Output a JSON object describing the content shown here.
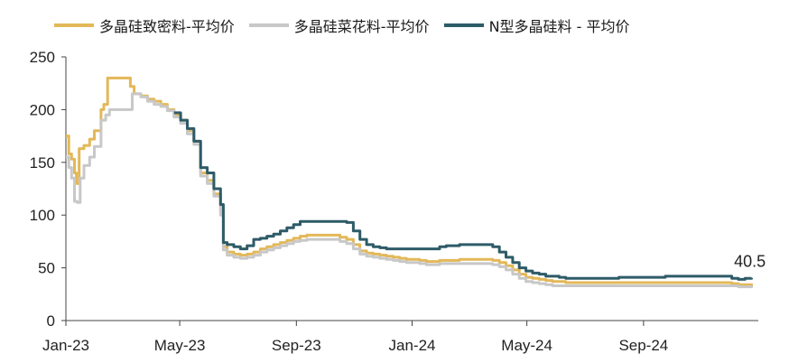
{
  "chart_data": {
    "type": "line",
    "title": "",
    "xlabel": "",
    "ylabel": "",
    "ylim": [
      0,
      250
    ],
    "yticks": [
      0,
      50,
      100,
      150,
      200,
      250
    ],
    "x_tick_labels": [
      "Jan-23",
      "May-23",
      "Sep-23",
      "Jan-24",
      "May-24",
      "Sep-24"
    ],
    "legend_position": "top",
    "grid": false,
    "annotation": "40.5",
    "series": [
      {
        "name": "多晶硅致密料-平均价",
        "color": "#e3b858",
        "points": [
          [
            "2023-01-01",
            175
          ],
          [
            "2023-01-04",
            158
          ],
          [
            "2023-01-07",
            153
          ],
          [
            "2023-01-10",
            140
          ],
          [
            "2023-01-12",
            130
          ],
          [
            "2023-01-15",
            163
          ],
          [
            "2023-01-20",
            166
          ],
          [
            "2023-01-26",
            172
          ],
          [
            "2023-01-31",
            180
          ],
          [
            "2023-02-07",
            200
          ],
          [
            "2023-02-10",
            205
          ],
          [
            "2023-02-14",
            230
          ],
          [
            "2023-03-07",
            230
          ],
          [
            "2023-03-10",
            222
          ],
          [
            "2023-03-14",
            215
          ],
          [
            "2023-03-21",
            213
          ],
          [
            "2023-03-28",
            210
          ],
          [
            "2023-04-04",
            208
          ],
          [
            "2023-04-11",
            205
          ],
          [
            "2023-04-18",
            200
          ],
          [
            "2023-04-25",
            195
          ],
          [
            "2023-05-02",
            190
          ],
          [
            "2023-05-09",
            180
          ],
          [
            "2023-05-16",
            170
          ],
          [
            "2023-05-23",
            140
          ],
          [
            "2023-05-30",
            133
          ],
          [
            "2023-06-06",
            120
          ],
          [
            "2023-06-13",
            105
          ],
          [
            "2023-06-16",
            70
          ],
          [
            "2023-06-20",
            65
          ],
          [
            "2023-06-27",
            63
          ],
          [
            "2023-07-04",
            62
          ],
          [
            "2023-07-11",
            63
          ],
          [
            "2023-07-18",
            65
          ],
          [
            "2023-07-25",
            68
          ],
          [
            "2023-08-01",
            70
          ],
          [
            "2023-08-08",
            72
          ],
          [
            "2023-08-15",
            74
          ],
          [
            "2023-08-22",
            76
          ],
          [
            "2023-08-29",
            78
          ],
          [
            "2023-09-05",
            80
          ],
          [
            "2023-09-12",
            81
          ],
          [
            "2023-10-10",
            81
          ],
          [
            "2023-10-17",
            79
          ],
          [
            "2023-10-24",
            77
          ],
          [
            "2023-10-31",
            72
          ],
          [
            "2023-11-07",
            66
          ],
          [
            "2023-11-14",
            64
          ],
          [
            "2023-11-21",
            63
          ],
          [
            "2023-11-28",
            62
          ],
          [
            "2023-12-05",
            61
          ],
          [
            "2023-12-12",
            60
          ],
          [
            "2023-12-19",
            59
          ],
          [
            "2023-12-26",
            58
          ],
          [
            "2024-01-02",
            58
          ],
          [
            "2024-01-09",
            57
          ],
          [
            "2024-01-16",
            56
          ],
          [
            "2024-01-23",
            56
          ],
          [
            "2024-01-30",
            57
          ],
          [
            "2024-02-20",
            58
          ],
          [
            "2024-03-05",
            58
          ],
          [
            "2024-03-19",
            58
          ],
          [
            "2024-03-26",
            57
          ],
          [
            "2024-04-02",
            55
          ],
          [
            "2024-04-09",
            52
          ],
          [
            "2024-04-16",
            48
          ],
          [
            "2024-04-23",
            44
          ],
          [
            "2024-04-30",
            41
          ],
          [
            "2024-05-07",
            40
          ],
          [
            "2024-05-14",
            39
          ],
          [
            "2024-05-21",
            38
          ],
          [
            "2024-05-28",
            37
          ],
          [
            "2024-06-11",
            36
          ],
          [
            "2024-07-02",
            36
          ],
          [
            "2024-08-06",
            36
          ],
          [
            "2024-09-03",
            36
          ],
          [
            "2024-10-01",
            36
          ],
          [
            "2024-11-05",
            36
          ],
          [
            "2024-12-03",
            35
          ],
          [
            "2024-12-10",
            34
          ],
          [
            "2024-12-24",
            35
          ]
        ]
      },
      {
        "name": "多晶硅菜花料-平均价",
        "color": "#c8c8c8",
        "points": [
          [
            "2023-01-01",
            155
          ],
          [
            "2023-01-04",
            145
          ],
          [
            "2023-01-07",
            135
          ],
          [
            "2023-01-10",
            113
          ],
          [
            "2023-01-13",
            112
          ],
          [
            "2023-01-16",
            135
          ],
          [
            "2023-01-20",
            147
          ],
          [
            "2023-01-26",
            155
          ],
          [
            "2023-01-31",
            165
          ],
          [
            "2023-02-07",
            190
          ],
          [
            "2023-02-12",
            195
          ],
          [
            "2023-02-16",
            200
          ],
          [
            "2023-03-10",
            200
          ],
          [
            "2023-03-12",
            215
          ],
          [
            "2023-03-21",
            212
          ],
          [
            "2023-03-28",
            208
          ],
          [
            "2023-04-04",
            205
          ],
          [
            "2023-04-11",
            203
          ],
          [
            "2023-04-18",
            199
          ],
          [
            "2023-04-25",
            193
          ],
          [
            "2023-05-02",
            187
          ],
          [
            "2023-05-09",
            177
          ],
          [
            "2023-05-16",
            167
          ],
          [
            "2023-05-23",
            137
          ],
          [
            "2023-05-30",
            130
          ],
          [
            "2023-06-06",
            118
          ],
          [
            "2023-06-13",
            100
          ],
          [
            "2023-06-16",
            67
          ],
          [
            "2023-06-20",
            62
          ],
          [
            "2023-06-27",
            60
          ],
          [
            "2023-07-04",
            59
          ],
          [
            "2023-07-11",
            60
          ],
          [
            "2023-07-18",
            62
          ],
          [
            "2023-07-25",
            65
          ],
          [
            "2023-08-01",
            67
          ],
          [
            "2023-08-08",
            69
          ],
          [
            "2023-08-15",
            71
          ],
          [
            "2023-08-22",
            73
          ],
          [
            "2023-08-29",
            75
          ],
          [
            "2023-09-05",
            76
          ],
          [
            "2023-09-12",
            77
          ],
          [
            "2023-10-10",
            77
          ],
          [
            "2023-10-17",
            75
          ],
          [
            "2023-10-24",
            73
          ],
          [
            "2023-10-31",
            68
          ],
          [
            "2023-11-07",
            63
          ],
          [
            "2023-11-14",
            61
          ],
          [
            "2023-11-21",
            60
          ],
          [
            "2023-11-28",
            59
          ],
          [
            "2023-12-05",
            58
          ],
          [
            "2023-12-12",
            57
          ],
          [
            "2023-12-19",
            56
          ],
          [
            "2023-12-26",
            55
          ],
          [
            "2024-01-02",
            55
          ],
          [
            "2024-01-09",
            54
          ],
          [
            "2024-01-16",
            53
          ],
          [
            "2024-01-23",
            53
          ],
          [
            "2024-01-30",
            54
          ],
          [
            "2024-02-20",
            54
          ],
          [
            "2024-03-05",
            54
          ],
          [
            "2024-03-19",
            54
          ],
          [
            "2024-03-26",
            53
          ],
          [
            "2024-04-02",
            51
          ],
          [
            "2024-04-09",
            48
          ],
          [
            "2024-04-16",
            44
          ],
          [
            "2024-04-23",
            40
          ],
          [
            "2024-04-30",
            37
          ],
          [
            "2024-05-07",
            36
          ],
          [
            "2024-05-14",
            35
          ],
          [
            "2024-05-21",
            34
          ],
          [
            "2024-05-28",
            33
          ],
          [
            "2024-06-11",
            33
          ],
          [
            "2024-07-02",
            33
          ],
          [
            "2024-08-06",
            33
          ],
          [
            "2024-09-03",
            33
          ],
          [
            "2024-10-01",
            33
          ],
          [
            "2024-11-05",
            33
          ],
          [
            "2024-12-03",
            33
          ],
          [
            "2024-12-10",
            32
          ],
          [
            "2024-12-24",
            33
          ]
        ]
      },
      {
        "name": "N型多晶硅料 - 平均价",
        "color": "#2e5b68",
        "points": [
          [
            "2023-04-25",
            197
          ],
          [
            "2023-05-02",
            190
          ],
          [
            "2023-05-09",
            182
          ],
          [
            "2023-05-16",
            170
          ],
          [
            "2023-05-23",
            145
          ],
          [
            "2023-05-30",
            140
          ],
          [
            "2023-06-06",
            125
          ],
          [
            "2023-06-13",
            110
          ],
          [
            "2023-06-16",
            74
          ],
          [
            "2023-06-20",
            72
          ],
          [
            "2023-06-27",
            70
          ],
          [
            "2023-07-04",
            68
          ],
          [
            "2023-07-11",
            71
          ],
          [
            "2023-07-18",
            77
          ],
          [
            "2023-07-25",
            78
          ],
          [
            "2023-08-01",
            80
          ],
          [
            "2023-08-08",
            82
          ],
          [
            "2023-08-15",
            85
          ],
          [
            "2023-08-22",
            88
          ],
          [
            "2023-08-29",
            91
          ],
          [
            "2023-09-05",
            94
          ],
          [
            "2023-10-17",
            94
          ],
          [
            "2023-10-24",
            93
          ],
          [
            "2023-10-31",
            85
          ],
          [
            "2023-11-07",
            77
          ],
          [
            "2023-11-14",
            72
          ],
          [
            "2023-11-21",
            70
          ],
          [
            "2023-11-28",
            69
          ],
          [
            "2023-12-05",
            68
          ],
          [
            "2024-01-09",
            68
          ],
          [
            "2024-01-16",
            68
          ],
          [
            "2024-01-23",
            68
          ],
          [
            "2024-01-30",
            70
          ],
          [
            "2024-02-06",
            71
          ],
          [
            "2024-02-20",
            72
          ],
          [
            "2024-03-05",
            72
          ],
          [
            "2024-03-19",
            72
          ],
          [
            "2024-03-26",
            70
          ],
          [
            "2024-04-02",
            65
          ],
          [
            "2024-04-09",
            60
          ],
          [
            "2024-04-16",
            55
          ],
          [
            "2024-04-23",
            50
          ],
          [
            "2024-04-30",
            47
          ],
          [
            "2024-05-07",
            45
          ],
          [
            "2024-05-14",
            44
          ],
          [
            "2024-05-21",
            42
          ],
          [
            "2024-06-04",
            41
          ],
          [
            "2024-06-11",
            40
          ],
          [
            "2024-07-02",
            40
          ],
          [
            "2024-07-30",
            40
          ],
          [
            "2024-08-06",
            41
          ],
          [
            "2024-09-03",
            41
          ],
          [
            "2024-09-24",
            42
          ],
          [
            "2024-10-01",
            42
          ],
          [
            "2024-11-05",
            42
          ],
          [
            "2024-11-26",
            42
          ],
          [
            "2024-12-03",
            40
          ],
          [
            "2024-12-10",
            39
          ],
          [
            "2024-12-17",
            40
          ],
          [
            "2024-12-24",
            40.5
          ]
        ]
      }
    ]
  }
}
